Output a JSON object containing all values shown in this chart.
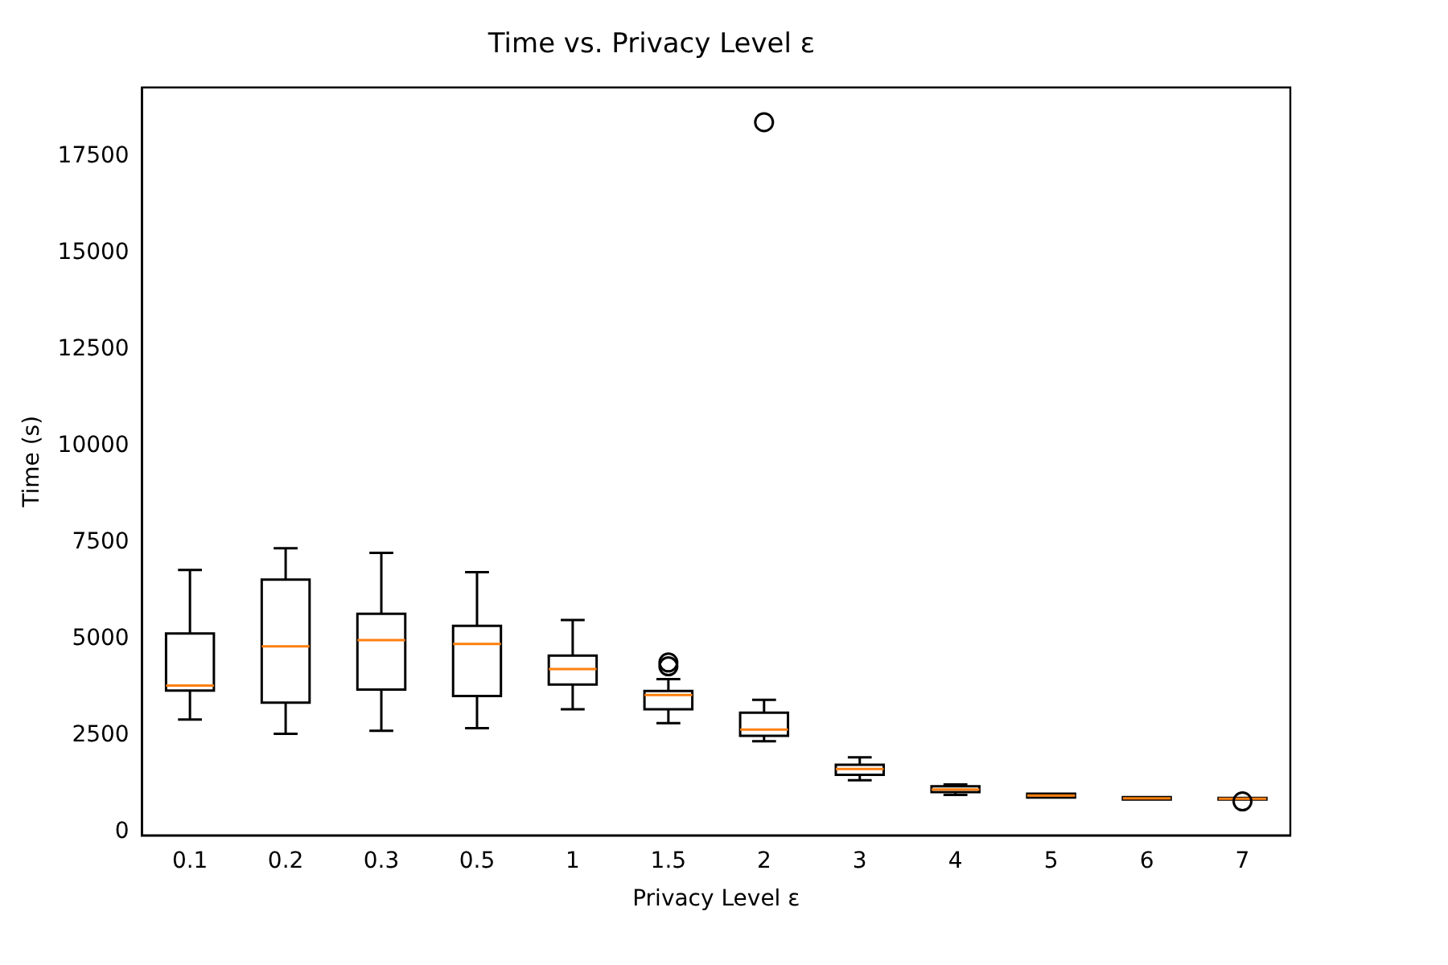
{
  "chart_data": {
    "type": "box",
    "title": "Time vs. Privacy Level ε",
    "xlabel": "Privacy Level ε",
    "ylabel": "Time (s)",
    "categories": [
      "0.1",
      "0.2",
      "0.3",
      "0.5",
      "1",
      "1.5",
      "2",
      "3",
      "4",
      "5",
      "6",
      "7"
    ],
    "ylim": [
      -80,
      19300
    ],
    "yticks": [
      0,
      2500,
      5000,
      7500,
      10000,
      12500,
      15000,
      17500
    ],
    "boxes": [
      {
        "low": 2920,
        "q1": 3670,
        "median": 3800,
        "q3": 5150,
        "high": 6800
      },
      {
        "low": 2550,
        "q1": 3360,
        "median": 4820,
        "q3": 6550,
        "high": 7360
      },
      {
        "low": 2630,
        "q1": 3700,
        "median": 4980,
        "q3": 5660,
        "high": 7240
      },
      {
        "low": 2700,
        "q1": 3530,
        "median": 4880,
        "q3": 5350,
        "high": 6740
      },
      {
        "low": 3190,
        "q1": 3830,
        "median": 4230,
        "q3": 4580,
        "high": 5500
      },
      {
        "low": 2830,
        "q1": 3190,
        "median": 3560,
        "q3": 3660,
        "high": 3970,
        "outliers": [
          4300,
          4400
        ]
      },
      {
        "low": 2360,
        "q1": 2500,
        "median": 2660,
        "q3": 3100,
        "high": 3430,
        "outliers": [
          18400
        ]
      },
      {
        "low": 1350,
        "q1": 1490,
        "median": 1640,
        "q3": 1750,
        "high": 1940
      },
      {
        "low": 970,
        "q1": 1040,
        "median": 1110,
        "q3": 1190,
        "high": 1240
      },
      {
        "low": 900,
        "q1": 900,
        "median": 950,
        "q3": 1000,
        "high": 1000
      },
      {
        "low": 850,
        "q1": 850,
        "median": 880,
        "q3": 910,
        "high": 910
      },
      {
        "low": 850,
        "q1": 850,
        "median": 870,
        "q3": 890,
        "high": 890,
        "outliers": [
          800
        ]
      }
    ]
  }
}
